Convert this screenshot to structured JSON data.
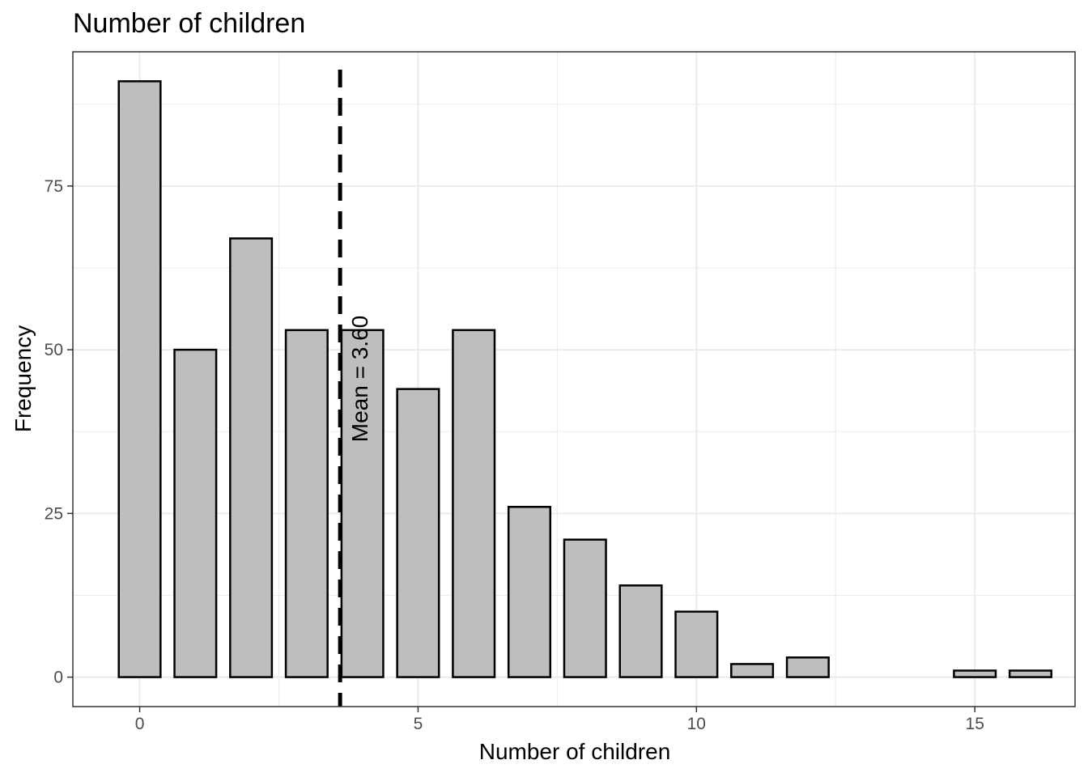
{
  "chart_data": {
    "type": "bar",
    "title": "Number of children",
    "xlabel": "Number of children",
    "ylabel": "Frequency",
    "x": [
      0,
      1,
      2,
      3,
      4,
      5,
      6,
      7,
      8,
      9,
      10,
      11,
      12,
      15,
      16
    ],
    "values": [
      91,
      50,
      67,
      53,
      53,
      44,
      53,
      26,
      21,
      14,
      10,
      2,
      3,
      1,
      1
    ],
    "xlim": [
      -1.2,
      16.8
    ],
    "ylim": [
      -4.5,
      95.5
    ],
    "x_ticks": [
      0,
      5,
      10,
      15
    ],
    "y_ticks": [
      0,
      25,
      50,
      75
    ],
    "mean": 3.6,
    "mean_label": "Mean = 3.60",
    "bar_fill": "#bebebe",
    "bar_stroke": "#000000",
    "grid": true,
    "theme": "bw"
  }
}
